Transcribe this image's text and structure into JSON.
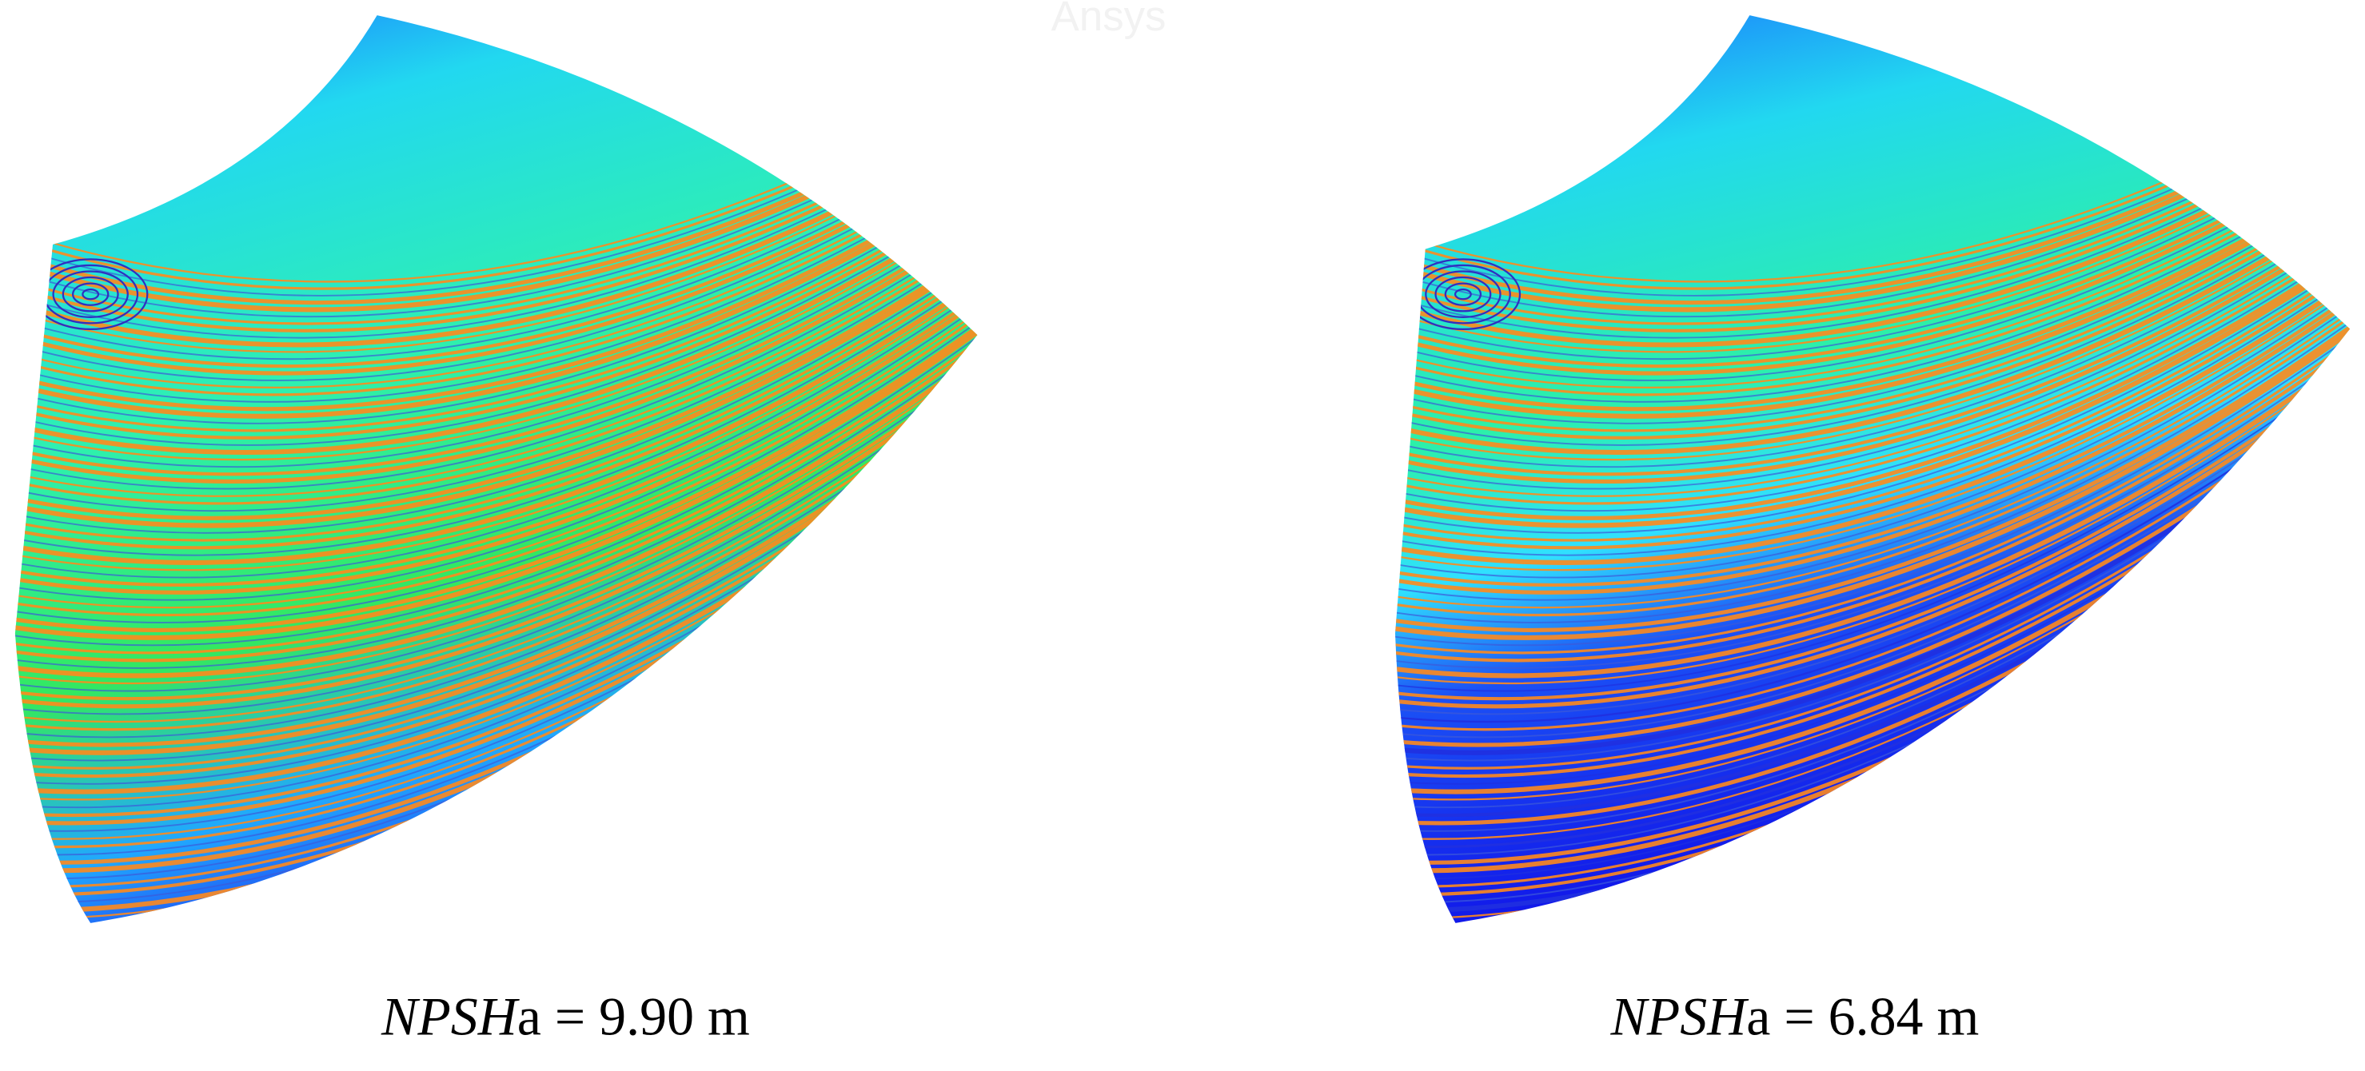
{
  "watermark": "Ansys",
  "panels": [
    {
      "caption": {
        "symbol": "NPSH",
        "rest": "a = 9.90 m"
      }
    },
    {
      "caption": {
        "symbol": "NPSH",
        "rest": "a = 6.84 m"
      }
    }
  ]
}
